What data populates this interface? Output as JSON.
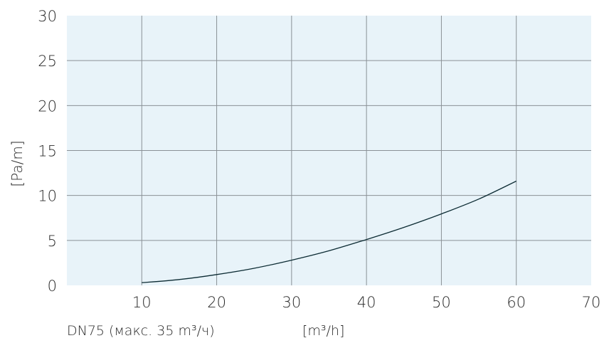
{
  "chart_data": {
    "type": "line",
    "xlabel": "[m³/h]",
    "ylabel": "[Pa/m]",
    "caption": "DN75 (макс. 35 m³/ч)",
    "xlim": [
      0,
      70
    ],
    "ylim": [
      0,
      30
    ],
    "x_ticks": [
      10,
      20,
      30,
      40,
      50,
      60,
      70
    ],
    "y_ticks": [
      0,
      5,
      10,
      15,
      20,
      25,
      30
    ],
    "x_tick_labels": [
      "10",
      "20",
      "30",
      "40",
      "50",
      "60",
      "70"
    ],
    "y_tick_labels": [
      "0",
      "5",
      "10",
      "15",
      "20",
      "25",
      "30"
    ],
    "grid": true,
    "series": [
      {
        "x": [
          10,
          15,
          20,
          25,
          30,
          35,
          40,
          45,
          50,
          55,
          60
        ],
        "y": [
          0.3,
          0.65,
          1.2,
          1.9,
          2.8,
          3.85,
          5.1,
          6.45,
          7.95,
          9.6,
          11.6
        ]
      }
    ]
  },
  "colors": {
    "plot_background": "#e8f3f9",
    "grid": "#8a9196",
    "line": "#0c2b33"
  }
}
